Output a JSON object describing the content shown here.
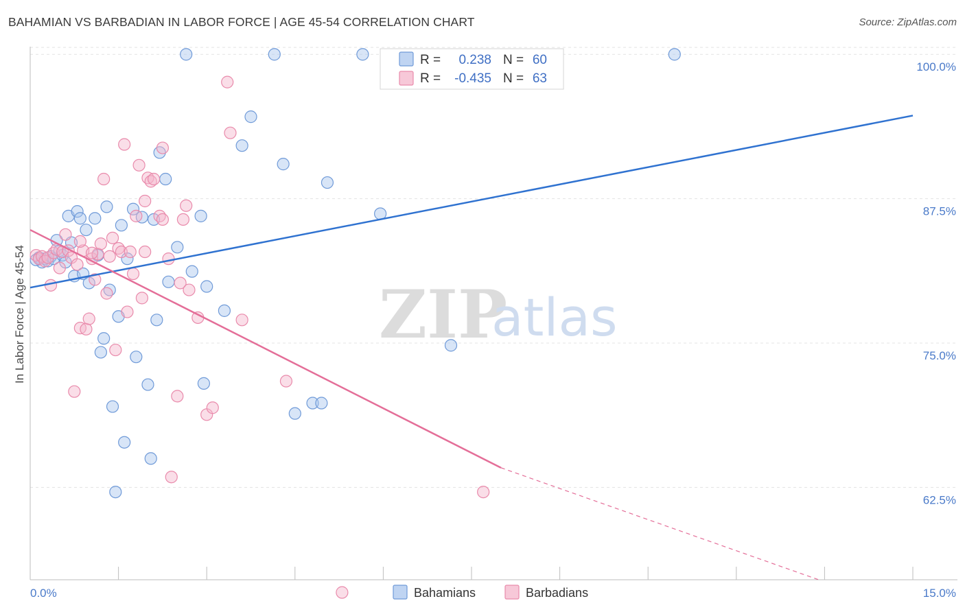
{
  "title": "BAHAMIAN VS BARBADIAN IN LABOR FORCE | AGE 45-54 CORRELATION CHART",
  "source": "Source: ZipAtlas.com",
  "watermark": {
    "zip": "ZIP",
    "atlas": "atlas"
  },
  "legend": {
    "r_label": "R =",
    "n_label": "N =",
    "rows": [
      {
        "name": "Bahamians",
        "r": "0.238",
        "n": "60"
      },
      {
        "name": "Barbadians",
        "r": "-0.435",
        "n": "63"
      }
    ]
  },
  "colors": {
    "blue_fill": "#a9c6ee",
    "blue_stroke": "#6f9ad8",
    "blue_line": "#2f72d0",
    "pink_fill": "#f4b6cb",
    "pink_stroke": "#e98aab",
    "pink_line": "#e46e98",
    "grid": "#e3e3e3"
  },
  "chart_data": {
    "type": "scatter",
    "title": "BAHAMIAN VS BARBADIAN IN LABOR FORCE | AGE 45-54 CORRELATION CHART",
    "xlabel": "",
    "ylabel": "In Labor Force | Age 45-54",
    "xlim": [
      0,
      15
    ],
    "ylim": [
      54.5,
      101.5
    ],
    "x_tick_labels": [
      "0.0%",
      "15.0%"
    ],
    "y_ticks": [
      62.5,
      75.0,
      87.5,
      100.0
    ],
    "y_tick_labels": [
      "62.5%",
      "75.0%",
      "87.5%",
      "100.0%"
    ],
    "legend_position": "bottom-center",
    "series": [
      {
        "name": "Bahamians",
        "r": 0.238,
        "n": 60,
        "trend": {
          "x0": 0.0,
          "y0": 79.8,
          "x1": 15.0,
          "y1": 94.7
        },
        "points": [
          [
            0.15,
            82.4
          ],
          [
            0.2,
            82.0
          ],
          [
            0.25,
            82.3
          ],
          [
            0.3,
            82.1
          ],
          [
            0.35,
            82.5
          ],
          [
            0.4,
            82.3
          ],
          [
            0.45,
            83.9
          ],
          [
            0.5,
            83.0
          ],
          [
            0.55,
            82.6
          ],
          [
            0.6,
            82.0
          ],
          [
            0.65,
            86.0
          ],
          [
            0.7,
            83.7
          ],
          [
            0.75,
            80.8
          ],
          [
            0.8,
            86.4
          ],
          [
            0.85,
            85.8
          ],
          [
            0.9,
            81.0
          ],
          [
            0.95,
            84.8
          ],
          [
            1.1,
            85.8
          ],
          [
            1.15,
            82.6
          ],
          [
            1.2,
            74.2
          ],
          [
            1.25,
            75.4
          ],
          [
            1.3,
            86.8
          ],
          [
            1.35,
            79.6
          ],
          [
            1.4,
            69.5
          ],
          [
            1.45,
            62.1
          ],
          [
            1.5,
            77.3
          ],
          [
            1.55,
            85.2
          ],
          [
            1.6,
            66.4
          ],
          [
            1.65,
            82.3
          ],
          [
            1.75,
            86.6
          ],
          [
            1.8,
            73.8
          ],
          [
            1.9,
            85.9
          ],
          [
            2.0,
            71.4
          ],
          [
            2.05,
            65.0
          ],
          [
            2.1,
            85.7
          ],
          [
            2.15,
            77.0
          ],
          [
            2.2,
            91.5
          ],
          [
            2.3,
            89.2
          ],
          [
            2.35,
            80.3
          ],
          [
            2.5,
            83.3
          ],
          [
            2.65,
            100.0
          ],
          [
            2.75,
            81.2
          ],
          [
            2.9,
            86.0
          ],
          [
            2.95,
            71.5
          ],
          [
            3.0,
            79.9
          ],
          [
            3.3,
            77.8
          ],
          [
            3.6,
            92.1
          ],
          [
            3.75,
            94.6
          ],
          [
            4.15,
            100.0
          ],
          [
            4.3,
            90.5
          ],
          [
            4.5,
            68.9
          ],
          [
            4.8,
            69.8
          ],
          [
            4.95,
            69.8
          ],
          [
            5.05,
            88.9
          ],
          [
            5.65,
            100.0
          ],
          [
            5.95,
            86.2
          ],
          [
            7.15,
            74.8
          ],
          [
            10.95,
            100.0
          ],
          [
            0.1,
            82.2
          ],
          [
            1.0,
            80.2
          ]
        ]
      },
      {
        "name": "Barbadians",
        "r": -0.435,
        "n": 63,
        "trend": {
          "x0": 0.0,
          "y0": 84.8,
          "x1": 8.0,
          "y1": 64.2,
          "dash_to_x": 13.4,
          "dash_to_y": 54.5
        },
        "points": [
          [
            0.1,
            82.6
          ],
          [
            0.15,
            82.3
          ],
          [
            0.2,
            82.5
          ],
          [
            0.25,
            82.1
          ],
          [
            0.3,
            82.4
          ],
          [
            0.35,
            80.0
          ],
          [
            0.4,
            82.8
          ],
          [
            0.45,
            83.1
          ],
          [
            0.5,
            81.5
          ],
          [
            0.55,
            82.9
          ],
          [
            0.6,
            84.4
          ],
          [
            0.65,
            83.0
          ],
          [
            0.7,
            82.4
          ],
          [
            0.75,
            70.8
          ],
          [
            0.8,
            81.8
          ],
          [
            0.85,
            76.3
          ],
          [
            0.9,
            83.0
          ],
          [
            0.95,
            76.2
          ],
          [
            1.0,
            77.1
          ],
          [
            1.05,
            82.3
          ],
          [
            1.1,
            80.5
          ],
          [
            1.15,
            82.7
          ],
          [
            1.2,
            83.6
          ],
          [
            1.25,
            89.2
          ],
          [
            1.3,
            79.3
          ],
          [
            1.35,
            82.5
          ],
          [
            1.4,
            84.1
          ],
          [
            1.45,
            74.4
          ],
          [
            1.5,
            83.2
          ],
          [
            1.55,
            82.9
          ],
          [
            1.6,
            92.2
          ],
          [
            1.65,
            77.7
          ],
          [
            1.7,
            82.9
          ],
          [
            1.75,
            81.0
          ],
          [
            1.8,
            86.0
          ],
          [
            1.85,
            90.4
          ],
          [
            1.9,
            78.9
          ],
          [
            1.95,
            87.3
          ],
          [
            2.0,
            89.3
          ],
          [
            2.05,
            89.0
          ],
          [
            2.1,
            89.2
          ],
          [
            2.2,
            86.0
          ],
          [
            2.25,
            91.9
          ],
          [
            2.35,
            82.3
          ],
          [
            2.4,
            63.4
          ],
          [
            2.5,
            70.4
          ],
          [
            2.55,
            80.2
          ],
          [
            2.6,
            85.7
          ],
          [
            2.65,
            86.9
          ],
          [
            2.7,
            79.6
          ],
          [
            2.85,
            77.2
          ],
          [
            3.0,
            68.8
          ],
          [
            3.1,
            69.4
          ],
          [
            3.35,
            97.6
          ],
          [
            3.4,
            93.2
          ],
          [
            3.6,
            77.0
          ],
          [
            4.35,
            71.7
          ],
          [
            5.3,
            53.4
          ],
          [
            7.7,
            62.1
          ],
          [
            1.05,
            82.8
          ],
          [
            0.85,
            83.8
          ],
          [
            1.95,
            82.9
          ],
          [
            2.25,
            85.7
          ]
        ]
      }
    ]
  }
}
